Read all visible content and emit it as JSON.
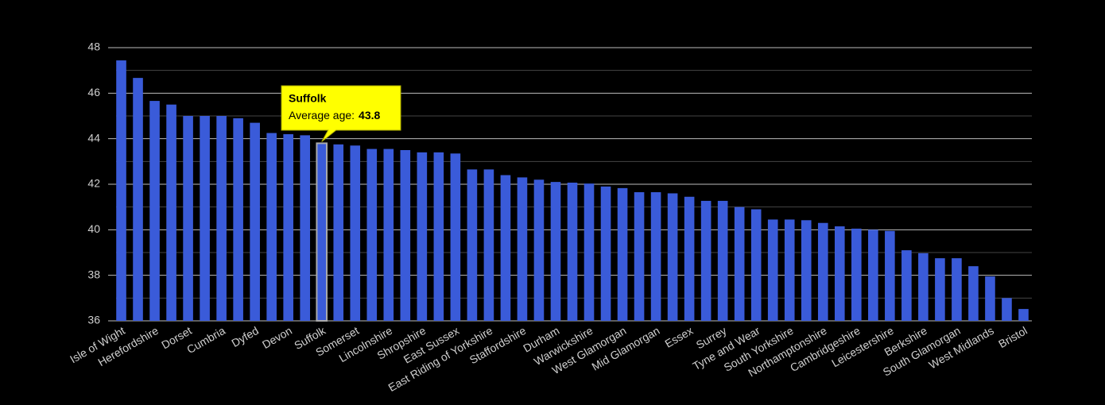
{
  "chart_data": {
    "type": "bar",
    "categories": [
      "Isle of Wight",
      null,
      "Herefordshire",
      null,
      "Dorset",
      null,
      "Cumbria",
      null,
      "Dyfed",
      null,
      "Devon",
      null,
      "Suffolk",
      null,
      "Somerset",
      null,
      "Lincolnshire",
      null,
      "Shropshire",
      null,
      "East Sussex",
      null,
      "East Riding of Yorkshire",
      null,
      "Staffordshire",
      null,
      "Durham",
      null,
      "Warwickshire",
      null,
      "West Glamorgan",
      null,
      "Mid Glamorgan",
      null,
      "Essex",
      null,
      "Surrey",
      null,
      "Tyne and Wear",
      null,
      "South Yorkshire",
      null,
      "Northamptonshire",
      null,
      "Cambridgeshire",
      null,
      "Leicestershire",
      null,
      "Berkshire",
      null,
      "South Glamorgan",
      null,
      "West Midlands",
      null,
      "Bristol"
    ],
    "values": [
      47.44,
      46.67,
      45.66,
      45.5,
      45.0,
      45.0,
      45.0,
      44.9,
      44.7,
      44.25,
      44.2,
      44.15,
      43.8,
      43.75,
      43.7,
      43.55,
      43.55,
      43.5,
      43.4,
      43.4,
      43.35,
      42.65,
      42.65,
      42.4,
      42.3,
      42.2,
      42.1,
      42.07,
      42.03,
      41.9,
      41.83,
      41.65,
      41.65,
      41.6,
      41.45,
      41.27,
      41.27,
      41.0,
      40.9,
      40.45,
      40.45,
      40.42,
      40.3,
      40.15,
      40.05,
      40.0,
      39.95,
      39.1,
      38.97,
      38.75,
      38.75,
      38.4,
      37.95,
      37.0,
      36.52
    ],
    "color": "#3a5bd9",
    "ylim": [
      36,
      48
    ],
    "yticks": [
      36,
      38,
      40,
      42,
      44,
      46,
      48
    ],
    "minor_yticks": [
      37,
      39,
      41,
      43,
      45,
      47
    ],
    "grid": true,
    "highlight_index": 12,
    "tooltip_label": "Average age:"
  }
}
